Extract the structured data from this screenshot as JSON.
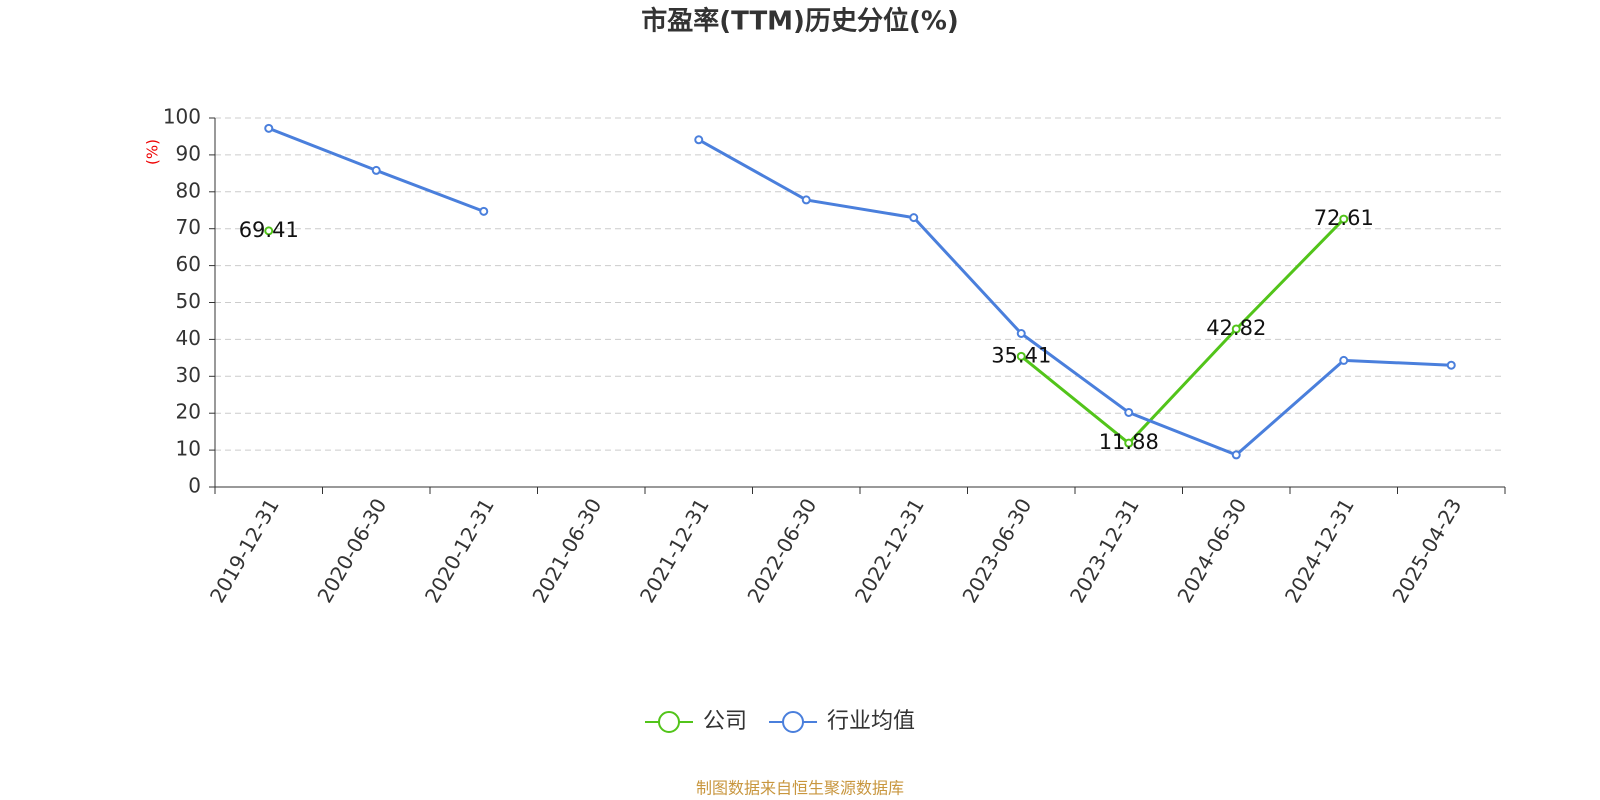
{
  "chart_data": {
    "type": "line",
    "title": "市盈率(TTM)历史分位(%)",
    "y_label": "(%)",
    "source": "制图数据来自恒生聚源数据库",
    "categories": [
      "2019-12-31",
      "2020-06-30",
      "2020-12-31",
      "2021-06-30",
      "2021-12-31",
      "2022-06-30",
      "2022-12-31",
      "2023-06-30",
      "2023-12-31",
      "2024-06-30",
      "2024-12-31",
      "2025-04-23"
    ],
    "series": [
      {
        "name": "公司",
        "color": "#52c41a",
        "show_labels": true,
        "values": [
          69.41,
          null,
          null,
          null,
          null,
          null,
          null,
          35.41,
          11.88,
          42.82,
          72.61,
          null
        ]
      },
      {
        "name": "行业均值",
        "color": "#4a7fdc",
        "show_labels": false,
        "values": [
          97.2,
          85.8,
          74.7,
          null,
          94.1,
          77.8,
          73.0,
          41.6,
          20.2,
          8.7,
          34.3,
          33.0
        ]
      }
    ],
    "ylim": [
      0,
      100
    ],
    "yticks": [
      0,
      10,
      20,
      30,
      40,
      50,
      60,
      70,
      80,
      90,
      100
    ],
    "grid": true
  }
}
